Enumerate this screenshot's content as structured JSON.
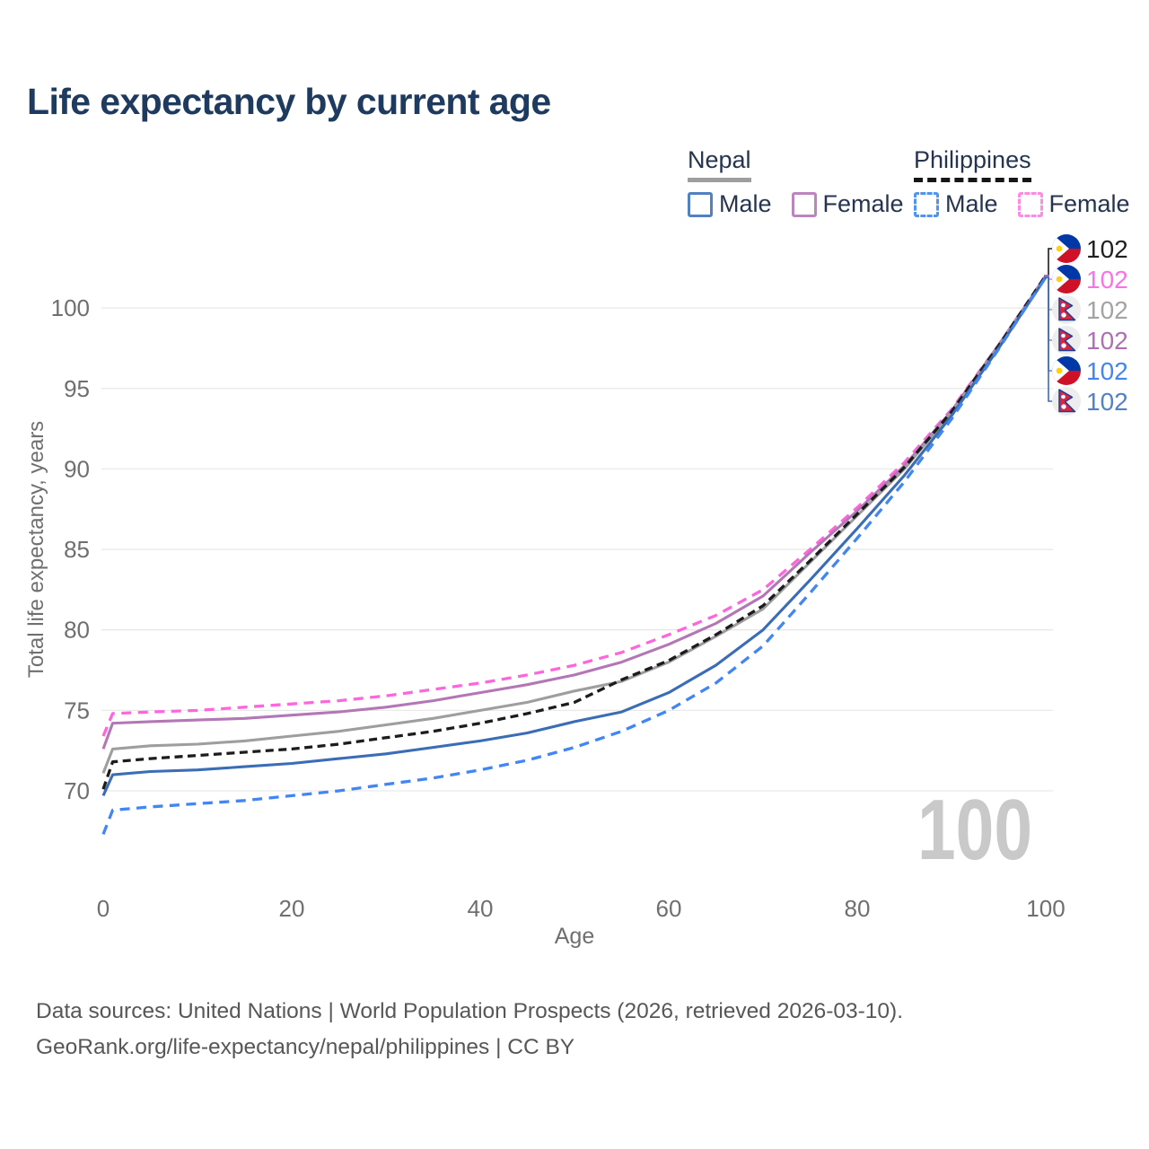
{
  "title": "Life expectancy by current age",
  "legend": {
    "groups": [
      {
        "label": "Nepal",
        "underline_style": "solid",
        "underline_color": "#9e9e9e",
        "items": [
          {
            "label": "Male",
            "color": "#5181c2",
            "dashed": false
          },
          {
            "label": "Female",
            "color": "#bd85bd",
            "dashed": false
          }
        ]
      },
      {
        "label": "Philippines",
        "underline_style": "dashed",
        "underline_color": "#161616",
        "items": [
          {
            "label": "Male",
            "color": "#4f94f0",
            "dashed": true
          },
          {
            "label": "Female",
            "color": "#ff8ae4",
            "dashed": true
          }
        ]
      }
    ]
  },
  "watermark": "100",
  "chart_data": {
    "type": "line",
    "title": "Life expectancy by current age",
    "xlabel": "Age",
    "ylabel": "Total life expectancy, years",
    "x_ticks": [
      0,
      20,
      40,
      60,
      80,
      100
    ],
    "y_ticks": [
      70,
      75,
      80,
      85,
      90,
      95,
      100
    ],
    "xlim": [
      0,
      100
    ],
    "ylim": [
      66,
      103.5
    ],
    "grid": "horizontal",
    "x": [
      0,
      1,
      5,
      10,
      15,
      20,
      25,
      30,
      35,
      40,
      45,
      50,
      55,
      60,
      65,
      70,
      75,
      80,
      85,
      90,
      95,
      100
    ],
    "series": [
      {
        "name": "Philippines Female",
        "country": "philippines",
        "sex": "female",
        "color": "#ff66dd",
        "dashed": true,
        "values": [
          73.4,
          74.8,
          74.9,
          75.0,
          75.2,
          75.4,
          75.6,
          75.9,
          76.3,
          76.7,
          77.2,
          77.8,
          78.6,
          79.7,
          80.9,
          82.5,
          85.0,
          87.6,
          90.4,
          93.7,
          97.7,
          102.0
        ]
      },
      {
        "name": "Nepal Female",
        "country": "nepal",
        "sex": "female",
        "color": "#b377b5",
        "dashed": false,
        "values": [
          72.6,
          74.2,
          74.3,
          74.4,
          74.5,
          74.7,
          74.9,
          75.2,
          75.6,
          76.1,
          76.6,
          77.2,
          78.0,
          79.1,
          80.4,
          82.1,
          84.8,
          87.4,
          90.2,
          93.6,
          97.7,
          101.97
        ]
      },
      {
        "name": "Nepal",
        "country": "nepal",
        "sex": "both",
        "color": "#9e9e9e",
        "dashed": false,
        "values": [
          71.1,
          72.6,
          72.8,
          72.9,
          73.1,
          73.4,
          73.7,
          74.1,
          74.5,
          75.0,
          75.5,
          76.2,
          76.8,
          78.0,
          79.6,
          81.3,
          84.2,
          87.1,
          90.0,
          93.5,
          97.6,
          101.95
        ]
      },
      {
        "name": "Philippines",
        "country": "philippines",
        "sex": "both",
        "color": "#1c1c1c",
        "dashed": true,
        "values": [
          70.1,
          71.8,
          72.0,
          72.2,
          72.4,
          72.6,
          72.9,
          73.3,
          73.7,
          74.2,
          74.8,
          75.5,
          76.9,
          78.1,
          79.7,
          81.5,
          84.3,
          87.2,
          90.1,
          93.55,
          97.65,
          102.02
        ]
      },
      {
        "name": "Nepal Male",
        "country": "nepal",
        "sex": "male",
        "color": "#3a6db5",
        "dashed": false,
        "values": [
          69.7,
          71.0,
          71.2,
          71.3,
          71.5,
          71.7,
          72.0,
          72.3,
          72.7,
          73.1,
          73.6,
          74.3,
          74.9,
          76.1,
          77.8,
          80.0,
          83.1,
          86.3,
          89.6,
          93.3,
          97.5,
          101.9
        ]
      },
      {
        "name": "Philippines Male",
        "country": "philippines",
        "sex": "male",
        "color": "#4285f4",
        "dashed": true,
        "values": [
          67.3,
          68.8,
          69.0,
          69.2,
          69.4,
          69.7,
          70.0,
          70.4,
          70.8,
          71.3,
          71.9,
          72.7,
          73.7,
          75.0,
          76.7,
          79.0,
          82.3,
          85.7,
          89.2,
          93.1,
          97.45,
          101.92
        ]
      }
    ],
    "end_labels": [
      {
        "flag": "philippines",
        "value": "102",
        "color": "#1f1f1f",
        "series_index": 3
      },
      {
        "flag": "philippines",
        "value": "102",
        "color": "#ff70e8",
        "series_index": 0
      },
      {
        "flag": "nepal",
        "value": "102",
        "color": "#a3a3a3",
        "series_index": 2
      },
      {
        "flag": "nepal",
        "value": "102",
        "color": "#b06fb3",
        "series_index": 1
      },
      {
        "flag": "philippines",
        "value": "102",
        "color": "#4285f4",
        "series_index": 5
      },
      {
        "flag": "nepal",
        "value": "102",
        "color": "#5381c6",
        "series_index": 4
      }
    ],
    "flag_colors": {
      "philippines_blue": "#0038a8",
      "philippines_red": "#ce1126",
      "philippines_sun": "#fcd116",
      "nepal_crimson": "#dc2340",
      "nepal_border": "#1b3f94"
    }
  },
  "footer": {
    "line1": "Data sources: United Nations | World Population Prospects (2026, retrieved 2026-03-10).",
    "line2": "GeoRank.org/life-expectancy/nepal/philippines | CC BY"
  },
  "colors": {
    "title": "#1e3a5f",
    "tick_label": "#6f6f6f",
    "gridline": "#e9e9e9",
    "watermark": "#c9c9c9",
    "footer": "#57575a"
  }
}
